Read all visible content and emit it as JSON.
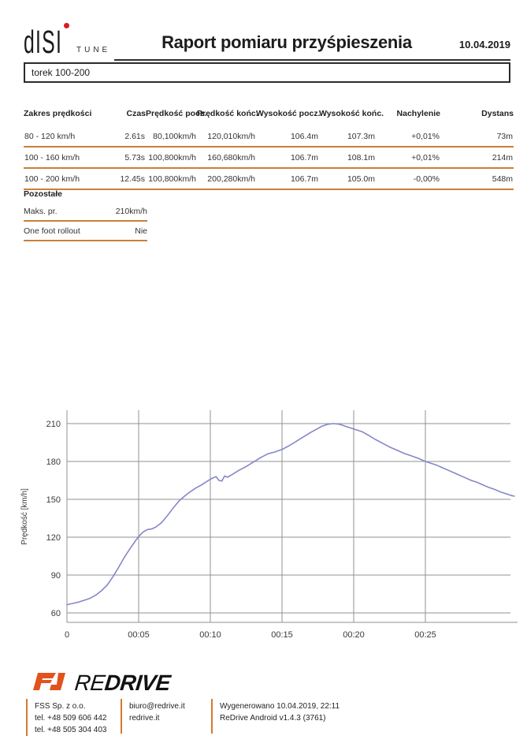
{
  "header": {
    "logo": {
      "text": "dISI",
      "sub": "TUNE"
    },
    "title": "Raport pomiaru przyśpieszenia",
    "date": "10.04.2019",
    "vehicle_field": "torek 100-200"
  },
  "measurements_table": {
    "columns": [
      "Zakres prędkości",
      "Czas",
      "Prędkość pocz.",
      "Prędkość końc.",
      "Wysokość pocz.",
      "Wysokość końc.",
      "Nachylenie",
      "Dystans"
    ],
    "rows": [
      [
        "80 - 120 km/h",
        "2.61s",
        "80,100km/h",
        "120,010km/h",
        "106.4m",
        "107.3m",
        "+0,01%",
        "73m"
      ],
      [
        "100 - 160 km/h",
        "5.73s",
        "100,800km/h",
        "160,680km/h",
        "106.7m",
        "108.1m",
        "+0,01%",
        "214m"
      ],
      [
        "100 - 200 km/h",
        "12.45s",
        "100,800km/h",
        "200,280km/h",
        "106.7m",
        "105.0m",
        "-0,00%",
        "548m"
      ]
    ]
  },
  "other_section": {
    "title": "Pozostałe",
    "rows": [
      {
        "label": "Maks. pr.",
        "value": "210km/h"
      },
      {
        "label": "One foot rollout",
        "value": "Nie"
      }
    ]
  },
  "chart_data": {
    "type": "line",
    "title": "",
    "xlabel": "",
    "ylabel": "Prędkość [km/h]",
    "y_ticks": [
      60,
      90,
      120,
      150,
      180,
      210
    ],
    "x_ticks": [
      {
        "t": 0,
        "label": "0"
      },
      {
        "t": 5,
        "label": "00:05"
      },
      {
        "t": 10,
        "label": "00:10"
      },
      {
        "t": 15,
        "label": "00:15"
      },
      {
        "t": 20,
        "label": "00:20"
      },
      {
        "t": 25,
        "label": "00:25"
      }
    ],
    "x_range_seconds": [
      0,
      31.3
    ],
    "y_range": [
      53,
      222
    ],
    "grid": true,
    "line_color": "#8486cb",
    "grid_color": "#909090",
    "series": [
      {
        "name": "Prędkość",
        "points": [
          [
            0,
            66.5
          ],
          [
            0.4,
            67.5
          ],
          [
            0.8,
            68.5
          ],
          [
            1.2,
            70
          ],
          [
            1.6,
            71.5
          ],
          [
            2,
            74
          ],
          [
            2.4,
            77.5
          ],
          [
            2.8,
            82
          ],
          [
            3.2,
            88.5
          ],
          [
            3.6,
            96
          ],
          [
            4,
            104
          ],
          [
            4.4,
            111
          ],
          [
            4.8,
            117.5
          ],
          [
            5,
            120.5
          ],
          [
            5.3,
            124
          ],
          [
            5.6,
            126
          ],
          [
            5.9,
            126.5
          ],
          [
            6.2,
            128
          ],
          [
            6.6,
            131.5
          ],
          [
            7,
            137
          ],
          [
            7.4,
            143
          ],
          [
            7.8,
            148.5
          ],
          [
            8.2,
            152.5
          ],
          [
            8.6,
            156
          ],
          [
            9,
            159
          ],
          [
            9.4,
            161.5
          ],
          [
            9.8,
            164.5
          ],
          [
            10.1,
            166.5
          ],
          [
            10.4,
            168
          ],
          [
            10.6,
            165
          ],
          [
            10.8,
            164.5
          ],
          [
            11,
            168.5
          ],
          [
            11.2,
            167.5
          ],
          [
            11.5,
            169.5
          ],
          [
            12,
            173
          ],
          [
            12.5,
            176
          ],
          [
            13,
            179.5
          ],
          [
            13.5,
            183
          ],
          [
            14,
            186
          ],
          [
            14.5,
            187.5
          ],
          [
            15,
            189.5
          ],
          [
            15.5,
            192.5
          ],
          [
            16,
            196
          ],
          [
            16.5,
            199.5
          ],
          [
            17,
            203
          ],
          [
            17.4,
            205.5
          ],
          [
            17.8,
            208
          ],
          [
            18.2,
            209.5
          ],
          [
            18.6,
            210
          ],
          [
            19,
            209.5
          ],
          [
            19.4,
            208
          ],
          [
            19.8,
            206.5
          ],
          [
            20.2,
            205
          ],
          [
            20.6,
            203.5
          ],
          [
            21,
            201
          ],
          [
            21.5,
            197.5
          ],
          [
            22,
            194.5
          ],
          [
            22.5,
            191.5
          ],
          [
            23,
            189
          ],
          [
            23.5,
            186.5
          ],
          [
            24,
            184.5
          ],
          [
            24.5,
            182.5
          ],
          [
            25,
            180
          ],
          [
            25.4,
            178.5
          ],
          [
            25.8,
            177
          ],
          [
            26.2,
            175
          ],
          [
            26.6,
            173
          ],
          [
            27,
            171
          ],
          [
            27.4,
            169
          ],
          [
            27.8,
            167
          ],
          [
            28.2,
            165
          ],
          [
            28.6,
            163.5
          ],
          [
            29,
            161.5
          ],
          [
            29.4,
            159.5
          ],
          [
            29.8,
            158
          ],
          [
            30.2,
            156
          ],
          [
            30.6,
            154.5
          ],
          [
            31,
            153
          ],
          [
            31.2,
            152.5
          ]
        ]
      }
    ]
  },
  "footer": {
    "brand": {
      "prefix": "RE",
      "suffix": "DRIVE"
    },
    "columns": [
      {
        "lines": [
          "FSS Sp. z o.o.",
          "tel. +48 509 606 442",
          "tel. +48 505 304 403"
        ]
      },
      {
        "lines": [
          "biuro@redrive.it",
          "redrive.it"
        ]
      },
      {
        "lines": [
          "Wygenerowano 10.04.2019, 22:11",
          "ReDrive Android v1.4.3 (3761)"
        ]
      }
    ]
  },
  "colors": {
    "table_rule_orange": "#c98038",
    "footer_divider_orange": "#d7792c",
    "brand_orange": "#e2521d",
    "logo_dot_red": "#d41e1e",
    "chart_line": "#8486cb",
    "chart_grid": "#909090"
  }
}
